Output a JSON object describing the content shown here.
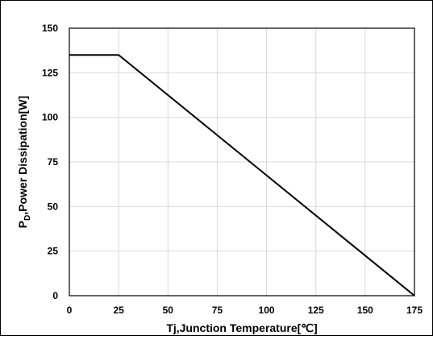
{
  "chart_data": {
    "type": "line",
    "title": "",
    "xlabel": "Tj,Junction Temperature[℃]",
    "ylabel": {
      "main": "P",
      "subscript": "D",
      "rest": ",Power Dissipation[W]"
    },
    "xlim": [
      0,
      175
    ],
    "ylim": [
      0,
      150
    ],
    "x_ticks": [
      0,
      25,
      50,
      75,
      100,
      125,
      150,
      175
    ],
    "y_ticks": [
      0,
      25,
      50,
      75,
      100,
      125,
      150
    ],
    "x_tick_labels": [
      "0",
      "25",
      "50",
      "75",
      "100",
      "125",
      "150",
      "175"
    ],
    "y_tick_labels": [
      "0",
      "25",
      "50",
      "75",
      "100",
      "125",
      "150"
    ],
    "grid": true,
    "series": [
      {
        "x": [
          0,
          25,
          175
        ],
        "y": [
          135,
          135,
          0
        ]
      }
    ],
    "colors": {
      "line": "#000000",
      "grid": "#d9d9d9",
      "frame": "#000000",
      "background": "#ffffff"
    }
  }
}
